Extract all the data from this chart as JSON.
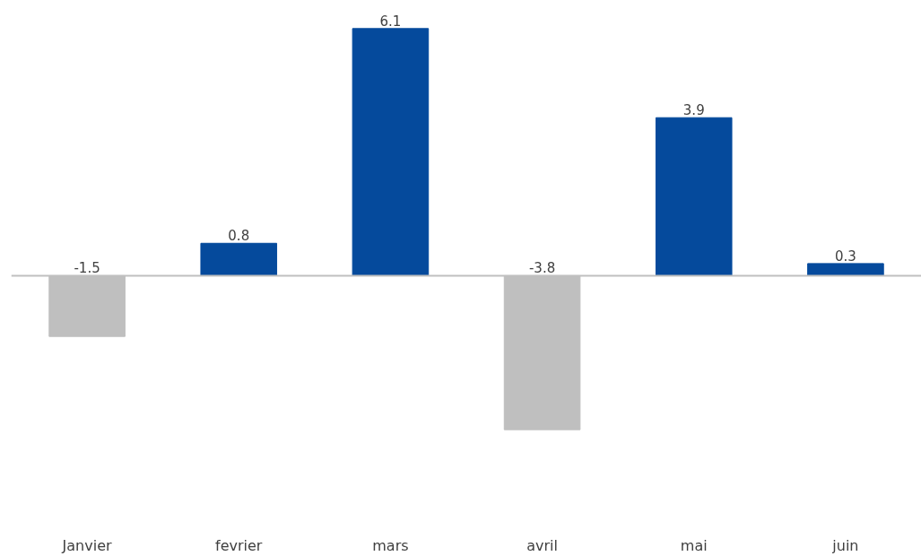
{
  "chart_data": {
    "type": "bar",
    "categories": [
      "Janvier",
      "fevrier",
      "mars",
      "avril",
      "mai",
      "juin"
    ],
    "values": [
      -1.5,
      0.8,
      6.1,
      -3.8,
      3.9,
      0.3
    ],
    "colors": [
      "#bfbfbf",
      "#054a9c",
      "#054a9c",
      "#bfbfbf",
      "#054a9c",
      "#054a9c"
    ],
    "ref_lines": [
      {
        "axis": "y",
        "value": 0,
        "color": "#bfbfbf"
      }
    ],
    "data_labels": true,
    "tick_labels": "x"
  }
}
